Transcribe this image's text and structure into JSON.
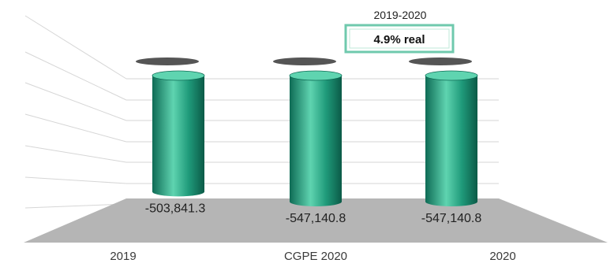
{
  "chart_data": {
    "type": "bar",
    "style": "3d-cylinder",
    "categories": [
      "2019",
      "CGPE 2020",
      "2020"
    ],
    "values": [
      -503841.3,
      -547140.8,
      -547140.8
    ],
    "value_labels": [
      "-503,841.3",
      "-547,140.8",
      "-547,140.8"
    ],
    "ylim": [
      -600000,
      0
    ],
    "grid": true,
    "legend": "none",
    "annotation": {
      "period": "2019-2020",
      "text": "4.9% real"
    },
    "colors": {
      "bar": "#1f9a7a",
      "bar_dark": "#0e6b55",
      "bar_light": "#5fd4b0",
      "cap": "#555555",
      "floor": "#b5b5b5",
      "annotation_border": "#6fc9ad",
      "grid": "#d6d6d6"
    }
  }
}
